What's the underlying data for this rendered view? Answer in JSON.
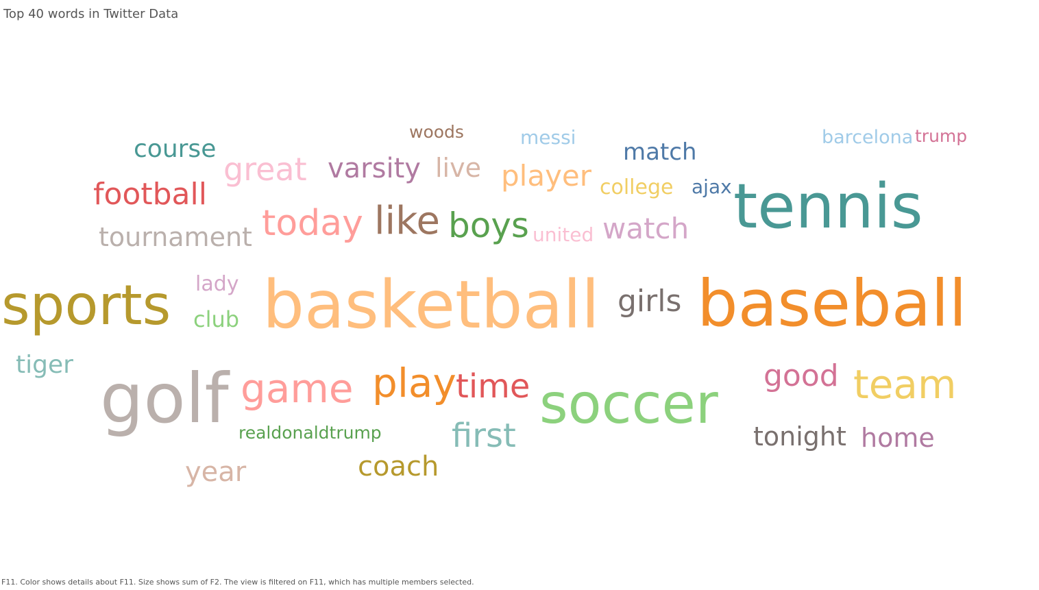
{
  "title": "Top 40 words in Twitter Data",
  "caption": "F11.  Color shows details about F11.  Size shows sum of F2. The view is filtered on F11, which has multiple members selected.",
  "chart_data": {
    "type": "wordcloud",
    "title": "Top 40 words in Twitter Data",
    "color_field": "F11",
    "size_field": "F2",
    "words": [
      {
        "text": "basketball",
        "size": 100,
        "color": "#FFBE7D"
      },
      {
        "text": "baseball",
        "size": 98,
        "color": "#F28E2B"
      },
      {
        "text": "sports",
        "size": 90,
        "color": "#B6992D"
      },
      {
        "text": "golf",
        "size": 92,
        "color": "#BAB0AC"
      },
      {
        "text": "soccer",
        "size": 86,
        "color": "#8CD17D"
      },
      {
        "text": "tennis",
        "size": 84,
        "color": "#499894"
      },
      {
        "text": "game",
        "size": 58,
        "color": "#FF9D9A"
      },
      {
        "text": "play",
        "size": 56,
        "color": "#F28E2B"
      },
      {
        "text": "team",
        "size": 56,
        "color": "#F1CE63"
      },
      {
        "text": "like",
        "size": 54,
        "color": "#9D7660"
      },
      {
        "text": "today",
        "size": 50,
        "color": "#FF9D9A"
      },
      {
        "text": "boys",
        "size": 48,
        "color": "#59A14F"
      },
      {
        "text": "first",
        "size": 46,
        "color": "#86BCB6"
      },
      {
        "text": "time",
        "size": 46,
        "color": "#E15759"
      },
      {
        "text": "good",
        "size": 44,
        "color": "#D37295"
      },
      {
        "text": "girls",
        "size": 44,
        "color": "#79706E"
      },
      {
        "text": "great",
        "size": 44,
        "color": "#FABFD2"
      },
      {
        "text": "football",
        "size": 42,
        "color": "#E15759"
      },
      {
        "text": "watch",
        "size": 42,
        "color": "#D4A6C8"
      },
      {
        "text": "player",
        "size": 40,
        "color": "#FFBE7D"
      },
      {
        "text": "tonight",
        "size": 38,
        "color": "#79706E"
      },
      {
        "text": "varsity",
        "size": 38,
        "color": "#B07AA1"
      },
      {
        "text": "year",
        "size": 38,
        "color": "#D7B5A6"
      },
      {
        "text": "coach",
        "size": 38,
        "color": "#B6992D"
      },
      {
        "text": "home",
        "size": 38,
        "color": "#B07AA1"
      },
      {
        "text": "tournament",
        "size": 38,
        "color": "#BAB0AC"
      },
      {
        "text": "live",
        "size": 36,
        "color": "#D7B5A6"
      },
      {
        "text": "course",
        "size": 35,
        "color": "#499894"
      },
      {
        "text": "tiger",
        "size": 35,
        "color": "#86BCB6"
      },
      {
        "text": "match",
        "size": 33,
        "color": "#4E79A7"
      },
      {
        "text": "club",
        "size": 32,
        "color": "#8CD17D"
      },
      {
        "text": "college",
        "size": 31,
        "color": "#F1CE63"
      },
      {
        "text": "lady",
        "size": 30,
        "color": "#D4A6C8"
      },
      {
        "text": "united",
        "size": 29,
        "color": "#FABFD2"
      },
      {
        "text": "messi",
        "size": 28,
        "color": "#A0CBE8"
      },
      {
        "text": "ajax",
        "size": 28,
        "color": "#4E79A7"
      },
      {
        "text": "barcelona",
        "size": 27,
        "color": "#A0CBE8"
      },
      {
        "text": "realdonaldtrump",
        "size": 26,
        "color": "#59A14F"
      },
      {
        "text": "woods",
        "size": 25,
        "color": "#9D7660"
      },
      {
        "text": "trump",
        "size": 25,
        "color": "#D37295"
      }
    ]
  }
}
